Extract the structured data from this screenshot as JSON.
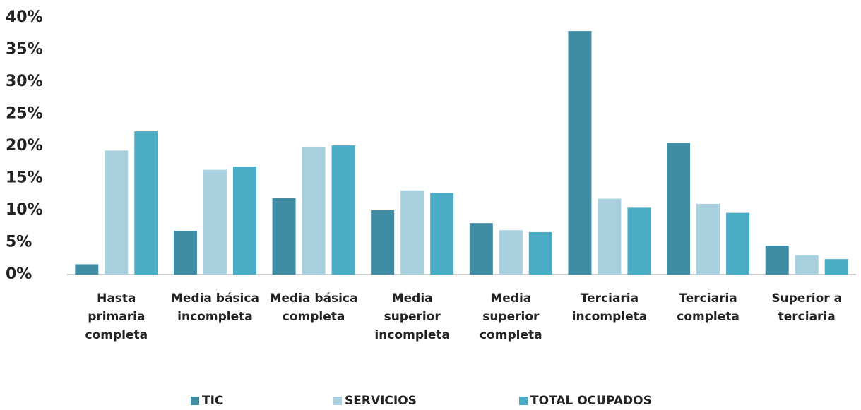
{
  "chart_data": {
    "type": "bar",
    "categories": [
      "Hasta primaria completa",
      "Media básica incompleta",
      "Media básica completa",
      "Media superior incompleta",
      "Media superior completa",
      "Terciaria incompleta",
      "Terciaria completa",
      "Superior a terciaria"
    ],
    "series": [
      {
        "name": "TIC",
        "color": "#3f8ca5",
        "values": [
          1.6,
          6.8,
          11.9,
          10.0,
          8.0,
          37.9,
          20.5,
          4.5
        ]
      },
      {
        "name": "SERVICIOS",
        "color": "#a9d0de",
        "values": [
          19.3,
          16.3,
          19.9,
          13.1,
          6.9,
          11.8,
          11.0,
          3.0
        ]
      },
      {
        "name": "TOTAL OCUPADOS",
        "color": "#4bacc6",
        "values": [
          22.3,
          16.8,
          20.1,
          12.7,
          6.6,
          10.4,
          9.6,
          2.4
        ]
      }
    ],
    "ylim": [
      0,
      40
    ],
    "yticks": [
      {
        "value": 0,
        "label": "0%"
      },
      {
        "value": 5,
        "label": "5%"
      },
      {
        "value": 10,
        "label": "10%"
      },
      {
        "value": 15,
        "label": "15%"
      },
      {
        "value": 20,
        "label": "20%"
      },
      {
        "value": 25,
        "label": "25%"
      },
      {
        "value": 30,
        "label": "30%"
      },
      {
        "value": 35,
        "label": "35%"
      },
      {
        "value": 40,
        "label": "40%"
      }
    ],
    "grid": false,
    "legend": "bottom"
  }
}
